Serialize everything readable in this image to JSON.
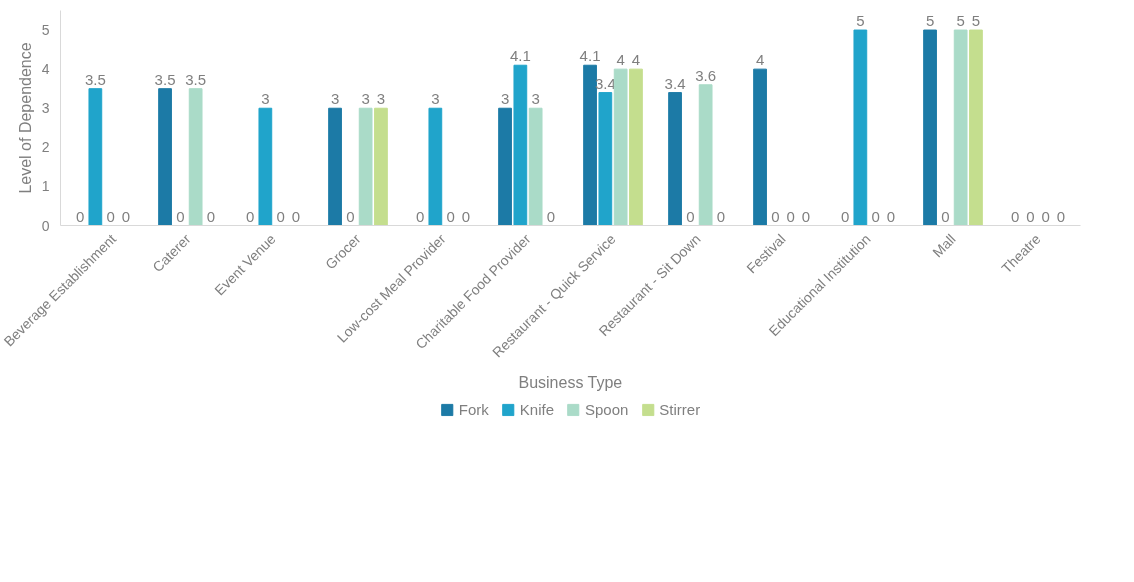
{
  "chart_data": {
    "type": "bar",
    "xlabel": "Business Type",
    "ylabel": "Level of Dependence",
    "categories": [
      "Beverage Establishment",
      "Caterer",
      "Event Venue",
      "Grocer",
      "Low-cost Meal Provider",
      "Charitable Food Provider",
      "Restaurant - Quick Service",
      "Restaurant - Sit Down",
      "Festival",
      "Educational Institution",
      "Mall",
      "Theatre"
    ],
    "series": [
      {
        "name": "Fork",
        "color": "#1c7aa6",
        "values": [
          0,
          3.5,
          0,
          3,
          0,
          3,
          4.1,
          3.4,
          4,
          0,
          5,
          0
        ]
      },
      {
        "name": "Knife",
        "color": "#20a4cb",
        "values": [
          3.5,
          0,
          3,
          0,
          3,
          4.1,
          3.4,
          0,
          0,
          5,
          0,
          0
        ]
      },
      {
        "name": "Spoon",
        "color": "#aadbc8",
        "values": [
          0,
          3.5,
          0,
          3,
          0,
          3,
          4,
          3.6,
          0,
          0,
          5,
          0
        ]
      },
      {
        "name": "Stirrer",
        "color": "#c4de8e",
        "values": [
          0,
          0,
          0,
          3,
          0,
          0,
          4,
          0,
          0,
          0,
          5,
          0
        ]
      }
    ],
    "ylim": [
      0,
      5.5
    ],
    "yticks": [
      0,
      1,
      2,
      3,
      4,
      5
    ],
    "grid": false,
    "legend": "bottom",
    "data_labels": true
  }
}
